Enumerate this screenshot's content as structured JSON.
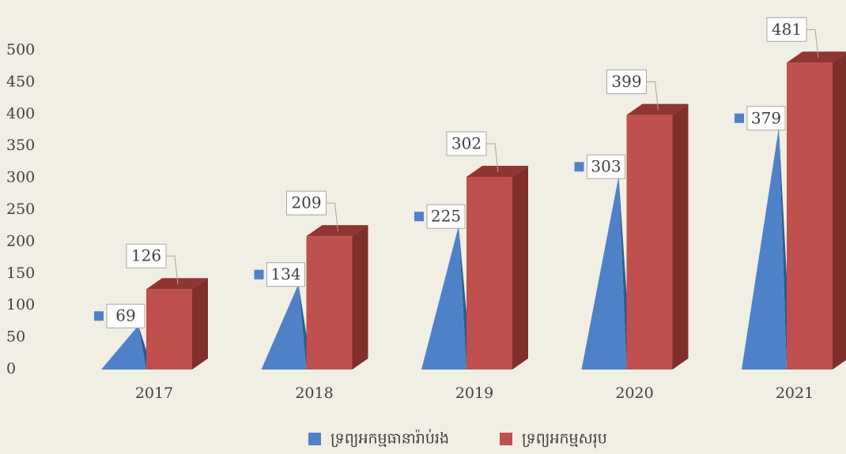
{
  "chart_data": {
    "type": "bar3d",
    "categories": [
      "2017",
      "2018",
      "2019",
      "2020",
      "2021"
    ],
    "series": [
      {
        "name": "ទ្រព្យអកម្មធានារ៉ាប់រង",
        "color": "#4f81c9",
        "shape": "pyramid",
        "values": [
          69,
          134,
          225,
          303,
          379
        ]
      },
      {
        "name": "ទ្រព្យអកម្មសរុប",
        "color": "#c0504d",
        "shape": "box",
        "values": [
          126,
          209,
          302,
          399,
          481
        ]
      }
    ],
    "ylim": [
      0,
      500
    ],
    "yticks": [
      0,
      50,
      100,
      150,
      200,
      250,
      300,
      350,
      400,
      450,
      500
    ],
    "legend": "bottom"
  }
}
